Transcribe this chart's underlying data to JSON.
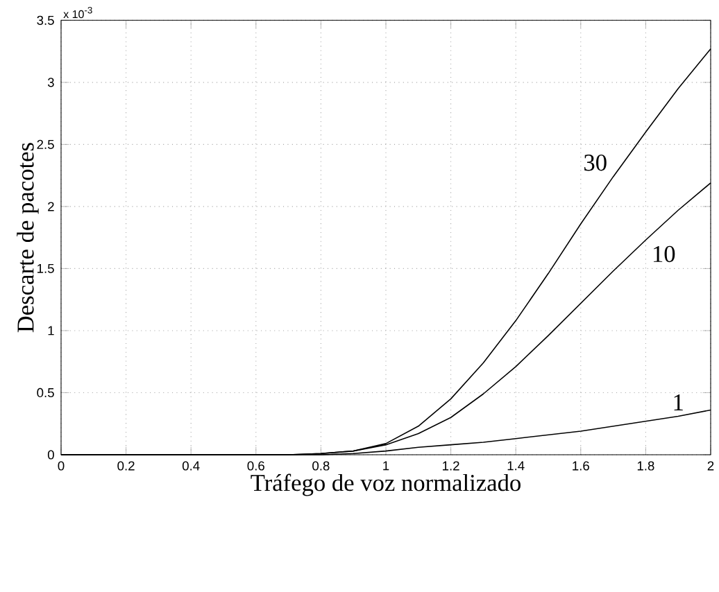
{
  "chart_data": {
    "type": "line",
    "xlabel": "Tráfego de voz normalizado",
    "ylabel": "Descarte de pacotes",
    "annotations": [
      "x 10$^{-3}$"
    ],
    "x": [
      0,
      0.2,
      0.4,
      0.6,
      0.7,
      0.8,
      0.9,
      1.0,
      1.1,
      1.2,
      1.3,
      1.4,
      1.5,
      1.6,
      1.7,
      1.8,
      1.9,
      2.0
    ],
    "series": [
      {
        "name": "30",
        "color": "#000000",
        "values": [
          0,
          0,
          0,
          0,
          0,
          0.01,
          0.03,
          0.09,
          0.23,
          0.45,
          0.74,
          1.08,
          1.46,
          1.86,
          2.24,
          2.6,
          2.95,
          3.27
        ]
      },
      {
        "name": "10",
        "color": "#000000",
        "values": [
          0,
          0,
          0,
          0,
          0,
          0.01,
          0.03,
          0.08,
          0.17,
          0.3,
          0.49,
          0.71,
          0.96,
          1.22,
          1.48,
          1.73,
          1.97,
          2.19
        ]
      },
      {
        "name": "1",
        "color": "#000000",
        "values": [
          0,
          0,
          0,
          0,
          0,
          0,
          0.01,
          0.03,
          0.06,
          0.08,
          0.1,
          0.13,
          0.16,
          0.19,
          0.23,
          0.27,
          0.31,
          0.36
        ]
      }
    ],
    "xlim": [
      0,
      2
    ],
    "ylim": [
      0,
      3.5
    ],
    "xticks": [
      0,
      0.2,
      0.4,
      0.6,
      0.8,
      1,
      1.2,
      1.4,
      1.6,
      1.8,
      2
    ],
    "yticks": [
      0,
      0.5,
      1,
      1.5,
      2,
      2.5,
      3,
      3.5
    ],
    "grid": true,
    "marker": "none",
    "line_style": "solid"
  }
}
